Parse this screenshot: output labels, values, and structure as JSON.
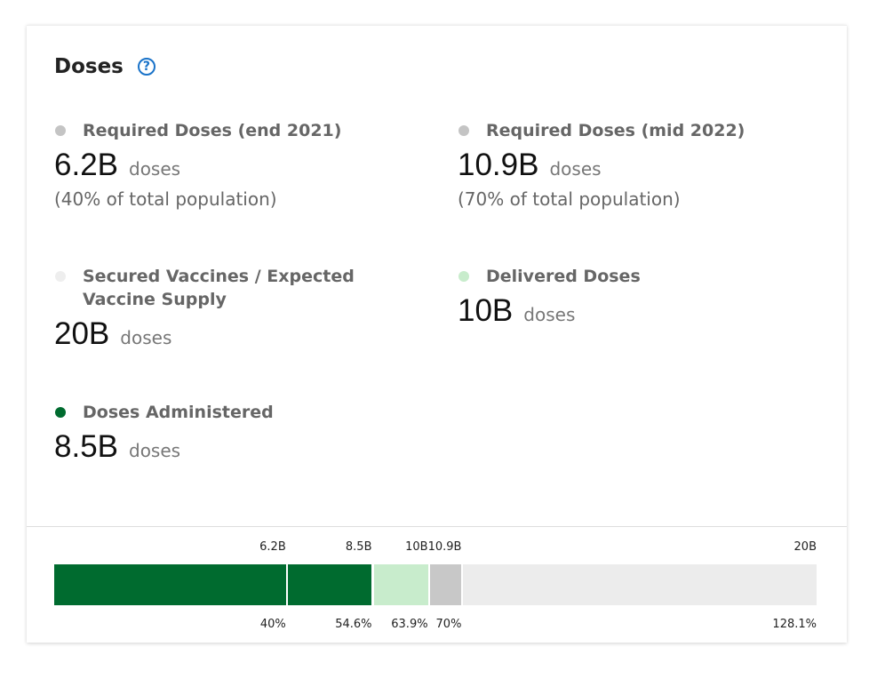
{
  "title": "Doses",
  "help_icon": "question-circle-icon",
  "stats": [
    {
      "label": "Required Doses (end 2021)",
      "value": "6.2B",
      "unit": "doses",
      "sub": "(40% of total population)",
      "color": "#c4c4c4"
    },
    {
      "label": "Required Doses (mid 2022)",
      "value": "10.9B",
      "unit": "doses",
      "sub": "(70% of total population)",
      "color": "#c4c4c4"
    },
    {
      "label": "Secured Vaccines / Expected Vaccine Supply",
      "value": "20B",
      "unit": "doses",
      "color": "#eeeeee"
    },
    {
      "label": "Delivered Doses",
      "value": "10B",
      "unit": "doses",
      "color": "#c8eccc"
    },
    {
      "label": "Doses Administered",
      "value": "8.5B",
      "unit": "doses",
      "color": "#006b2f"
    }
  ],
  "bar": {
    "max": 20.4,
    "segments": [
      {
        "value": 6.2,
        "label": "6.2B",
        "pct": "40%",
        "color": "#006b2f"
      },
      {
        "value": 8.5,
        "label": "8.5B",
        "pct": "54.6%",
        "color": "#006b2f"
      },
      {
        "value": 10,
        "label": "10B",
        "pct": "63.9%",
        "color": "#c8eccc"
      },
      {
        "value": 10.9,
        "label": "10.9B",
        "pct": "70%",
        "color": "#c8c8c8"
      },
      {
        "value": 20.4,
        "label": "20B",
        "pct": "128.1%",
        "color": "#ececec"
      }
    ]
  }
}
